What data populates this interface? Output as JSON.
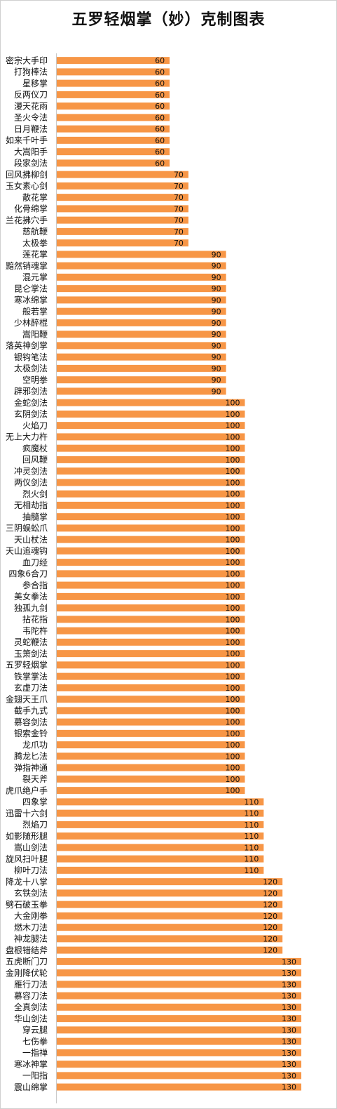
{
  "chart_data": {
    "type": "bar",
    "orientation": "horizontal",
    "title": "五罗轻烟掌（妙）克制图表",
    "bar_color": "#F79646",
    "categories": [
      "密宗大手印",
      "打狗棒法",
      "星移掌",
      "反两仪刀",
      "漫天花雨",
      "圣火令法",
      "日月鞭法",
      "如来千叶手",
      "大嵩阳手",
      "段家剑法",
      "回风拂柳剑",
      "玉女素心剑",
      "散花掌",
      "化骨绵掌",
      "兰花拂穴手",
      "慈航鞭",
      "太极拳",
      "莲花掌",
      "黯然销魂掌",
      "混元掌",
      "昆仑掌法",
      "寒冰绵掌",
      "般若掌",
      "少林醉棍",
      "嵩阳鞭",
      "落英神剑掌",
      "银钩笔法",
      "太极剑法",
      "空明拳",
      "辟邪剑法",
      "金蛇剑法",
      "玄阴剑法",
      "火焰刀",
      "无上大力杵",
      "疯魔杖",
      "回风鞭",
      "冲灵剑法",
      "两仪剑法",
      "烈火剑",
      "无相劫指",
      "抽髓掌",
      "三阴蜈蚣爪",
      "天山杖法",
      "天山追魂钩",
      "血刀经",
      "四象6合刀",
      "参合指",
      "美女拳法",
      "独孤九剑",
      "拈花指",
      "韦陀杵",
      "灵蛇鞭法",
      "玉箫剑法",
      "五罗轻烟掌",
      "铁掌掌法",
      "玄虚刀法",
      "金翅天王爪",
      "截手九式",
      "慕容剑法",
      "银索金铃",
      "龙爪功",
      "腾龙匕法",
      "弹指神通",
      "裂天斧",
      "虎爪绝户手",
      "四象掌",
      "迅雷十六剑",
      "烈焰刀",
      "如影随形腿",
      "嵩山剑法",
      "旋风扫叶腿",
      "柳叶刀法",
      "降龙十八掌",
      "玄铁剑法",
      "劈石破玉拳",
      "大金刚拳",
      "燃木刀法",
      "神龙腿法",
      "盘根错结斧",
      "五虎断门刀",
      "金刚降伏轮",
      "雁行刀法",
      "慕容刀法",
      "全真剑法",
      "华山剑法",
      "穿云腿",
      "七伤拳",
      "一指禅",
      "寒冰神掌",
      "一阳指",
      "震山绵掌"
    ],
    "values": [
      60,
      60,
      60,
      60,
      60,
      60,
      60,
      60,
      60,
      60,
      70,
      70,
      70,
      70,
      70,
      70,
      70,
      90,
      90,
      90,
      90,
      90,
      90,
      90,
      90,
      90,
      90,
      90,
      90,
      90,
      100,
      100,
      100,
      100,
      100,
      100,
      100,
      100,
      100,
      100,
      100,
      100,
      100,
      100,
      100,
      100,
      100,
      100,
      100,
      100,
      100,
      100,
      100,
      100,
      100,
      100,
      100,
      100,
      100,
      100,
      100,
      100,
      100,
      100,
      100,
      110,
      110,
      110,
      110,
      110,
      110,
      110,
      120,
      120,
      120,
      120,
      120,
      120,
      120,
      130,
      130,
      130,
      130,
      130,
      130,
      130,
      130,
      130,
      130,
      130,
      130
    ],
    "xlim": [
      0,
      130
    ],
    "grid": false,
    "legend": "none"
  }
}
